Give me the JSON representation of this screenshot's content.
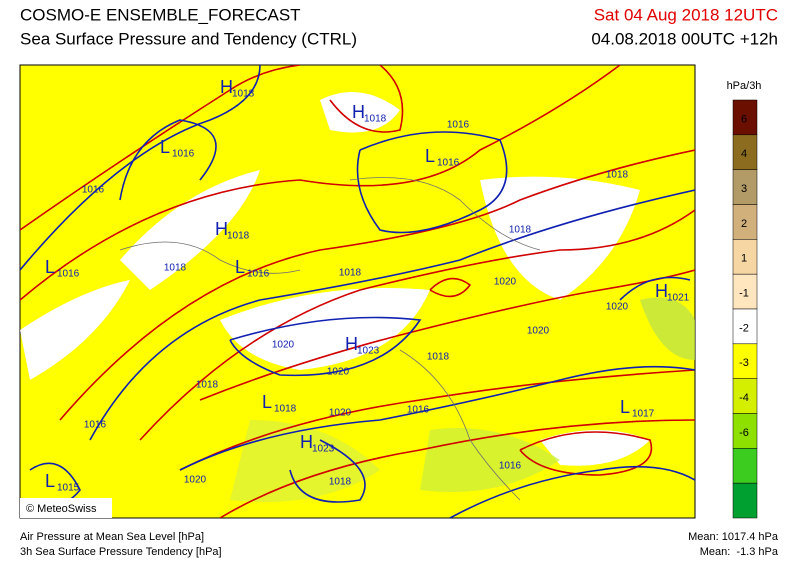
{
  "header": {
    "title": "COSMO-E ENSEMBLE_FORECAST",
    "subtitle": "Sea Surface Pressure and Tendency (CTRL)",
    "valid_time": "Sat 04 Aug 2018 12UTC",
    "run_time": "04.08.2018 00UTC +12h"
  },
  "map": {
    "centers": [
      {
        "letter": "H",
        "value": "1018"
      },
      {
        "letter": "H",
        "value": "1018"
      },
      {
        "letter": "L",
        "value": "1016"
      },
      {
        "letter": "L",
        "value": "1016"
      },
      {
        "letter": "H",
        "value": "1018"
      },
      {
        "letter": "L",
        "value": "1016"
      },
      {
        "letter": "L",
        "value": "1016"
      },
      {
        "letter": "H",
        "value": "1023"
      },
      {
        "letter": "H",
        "value": "1021"
      },
      {
        "letter": "L",
        "value": "1018"
      },
      {
        "letter": "H",
        "value": "1023"
      },
      {
        "letter": "L",
        "value": "1017"
      },
      {
        "letter": "L",
        "value": "1015"
      }
    ],
    "isobar_labels": [
      "1016",
      "1016",
      "1018",
      "1018",
      "1018",
      "1018",
      "1020",
      "1020",
      "1020",
      "1020",
      "1020",
      "1018",
      "1018",
      "1020",
      "1016",
      "1016",
      "1018",
      "1016",
      "1020"
    ],
    "copyright": "© MeteoSwiss"
  },
  "colorbar": {
    "unit": "hPa/3h",
    "ticks": [
      6,
      4,
      3,
      2,
      1,
      -1,
      -2,
      -3,
      -4,
      -6
    ],
    "colors": [
      "#6b0f00",
      "#8c6d1f",
      "#b39b68",
      "#d2b07c",
      "#f6d7a4",
      "#ffe6bf",
      "#ffffff",
      "#ffff00",
      "#d4f000",
      "#8ee000",
      "#3ccc20",
      "#00a030"
    ]
  },
  "footer": {
    "lines": [
      "Air Pressure at Mean Sea Level [hPa]",
      "3h Sea Surface Pressure Tendency [hPa]"
    ],
    "means": [
      "Mean: 1017.4 hPa",
      "Mean:  -1.3 hPa"
    ]
  }
}
